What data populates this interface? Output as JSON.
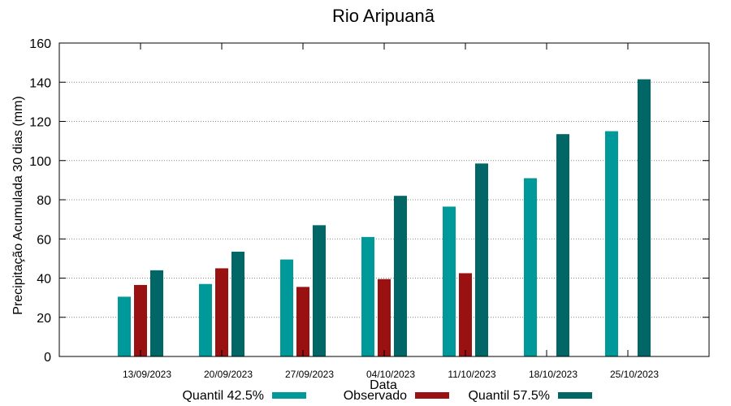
{
  "chart_data": {
    "type": "bar",
    "title": "Rio Aripuanã",
    "xlabel": "Data",
    "ylabel": "Precipitação Acumulada 30 dias (mm)",
    "ylim": [
      0,
      160
    ],
    "yticks": [
      0,
      20,
      40,
      60,
      80,
      100,
      120,
      140,
      160
    ],
    "grid": true,
    "legend_position": "bottom",
    "categories": [
      "13/09/2023",
      "20/09/2023",
      "27/09/2023",
      "04/10/2023",
      "11/10/2023",
      "18/10/2023",
      "25/10/2023"
    ],
    "series": [
      {
        "name": "Quantil 42.5%",
        "color": "#009999",
        "values": [
          30.5,
          37,
          49.5,
          61,
          76.5,
          91,
          115
        ]
      },
      {
        "name": "Observado",
        "color": "#991111",
        "values": [
          36.5,
          45,
          35.5,
          39.5,
          42.5,
          null,
          null
        ]
      },
      {
        "name": "Quantil 57.5%",
        "color": "#006666",
        "values": [
          44,
          53.5,
          67,
          82,
          98.5,
          113.5,
          141.5
        ]
      }
    ]
  }
}
